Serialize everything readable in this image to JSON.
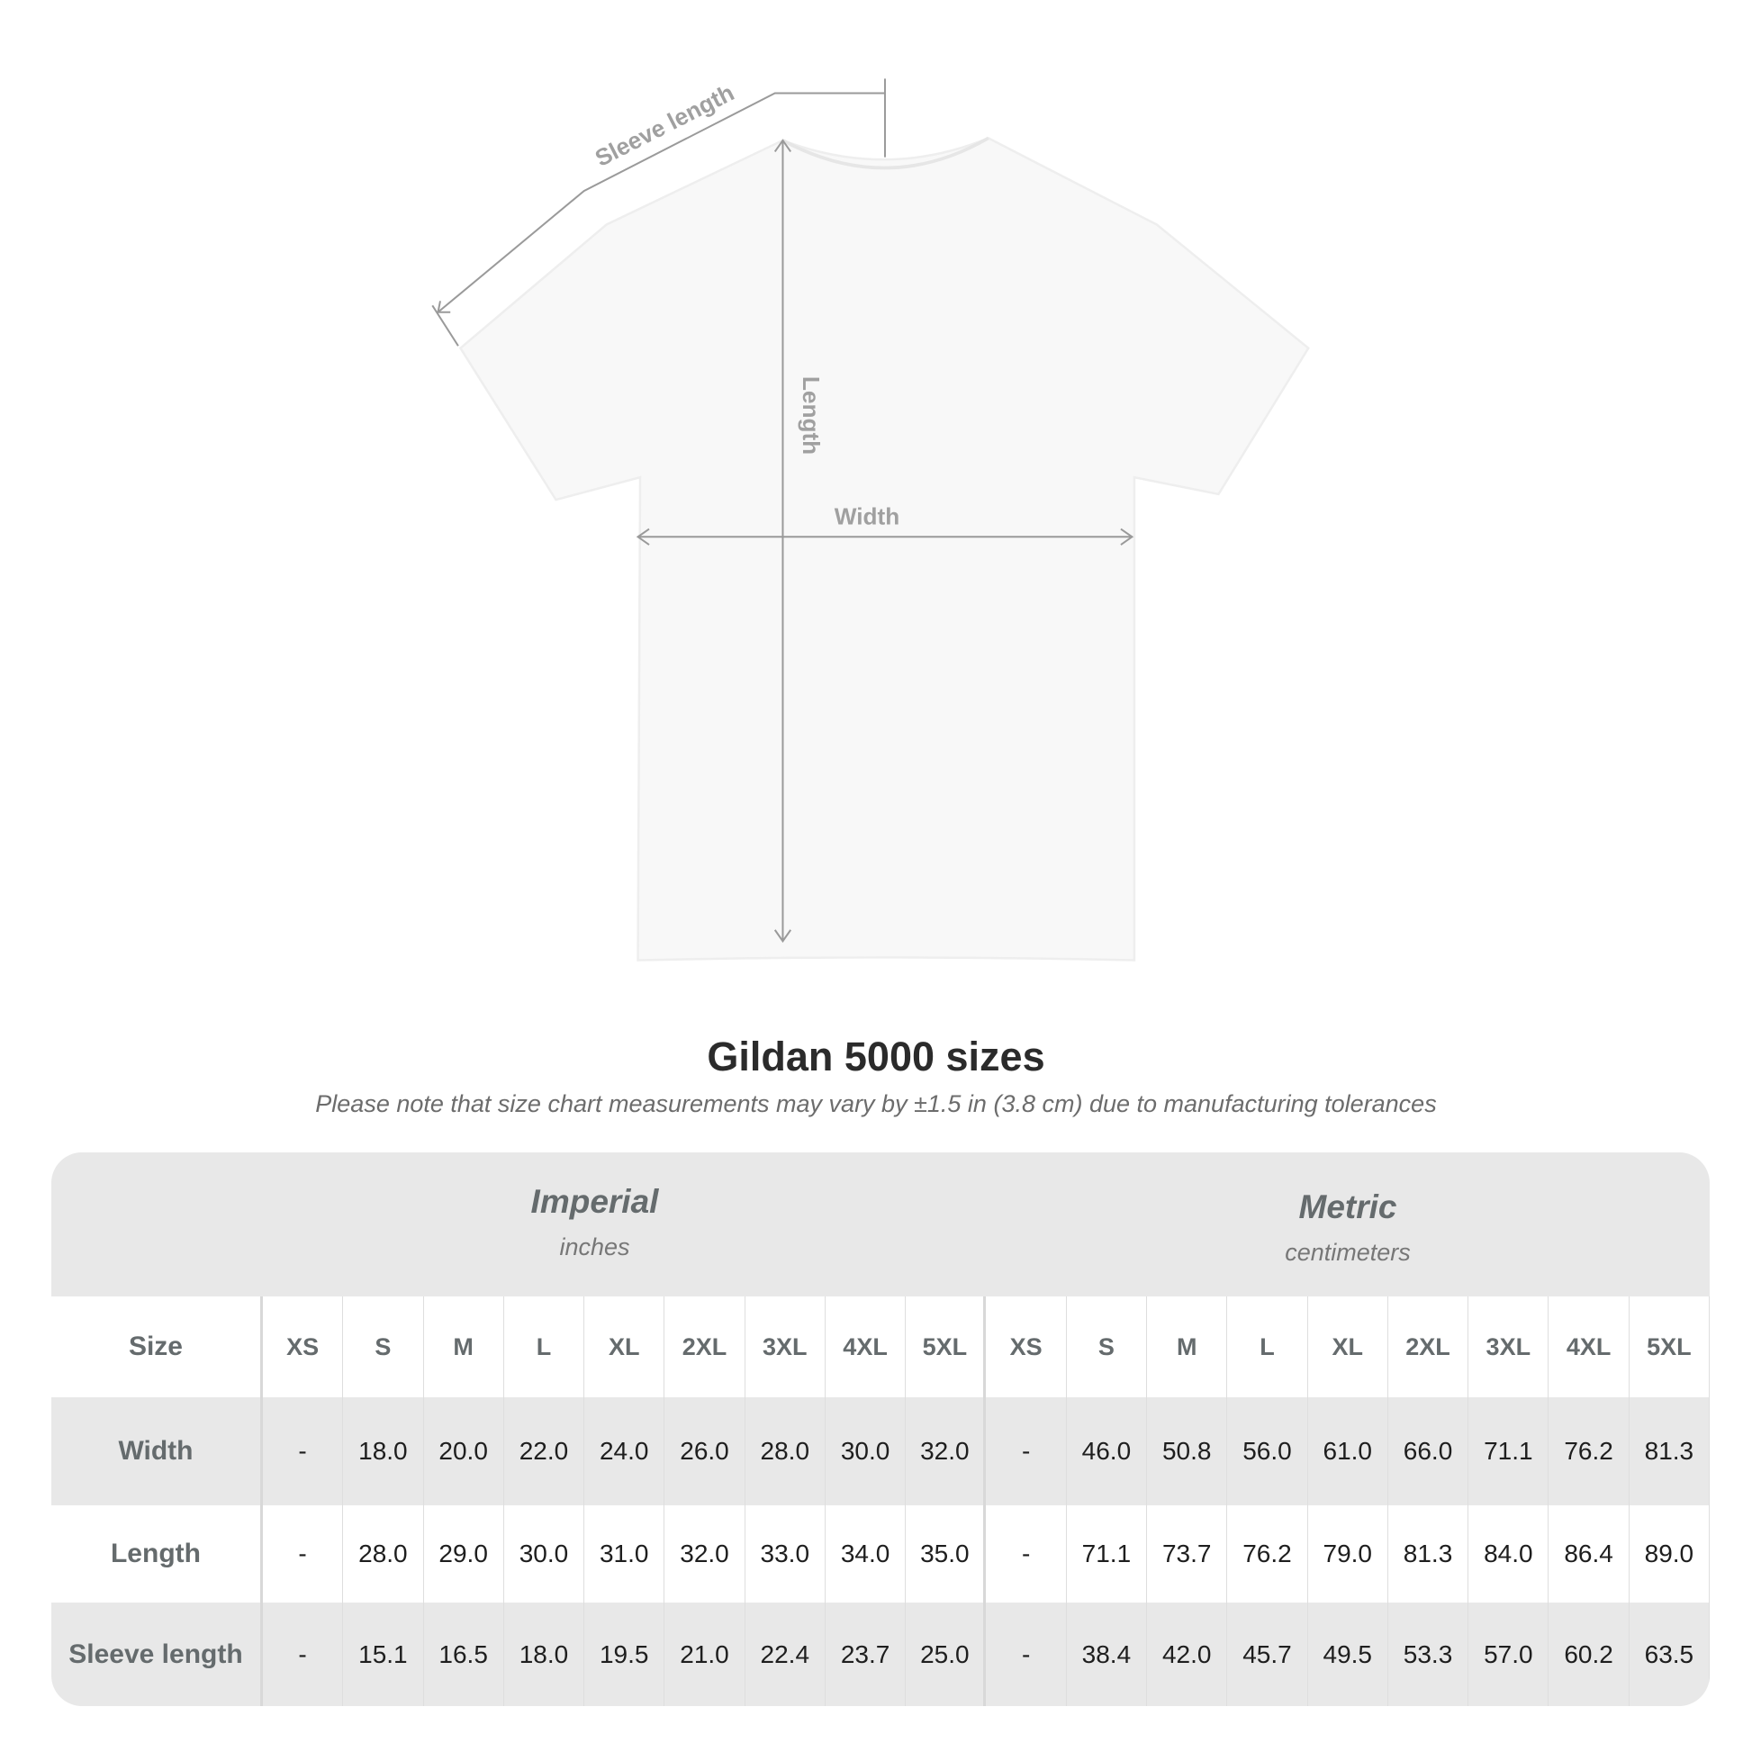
{
  "diagram": {
    "sleeve_label": "Sleeve length",
    "length_label": "Length",
    "width_label": "Width"
  },
  "title": "Gildan 5000 sizes",
  "note": "Please note that size chart measurements may vary by ±1.5 in (3.8 cm) due to manufacturing tolerances",
  "imperial": {
    "heading": "Imperial",
    "unit": "inches"
  },
  "metric": {
    "heading": "Metric",
    "unit": "centimeters"
  },
  "table": {
    "size_label": "Size",
    "sizes": [
      "XS",
      "S",
      "M",
      "L",
      "XL",
      "2XL",
      "3XL",
      "4XL",
      "5XL"
    ],
    "rows": [
      {
        "label": "Width",
        "imperial": [
          "-",
          "18.0",
          "20.0",
          "22.0",
          "24.0",
          "26.0",
          "28.0",
          "30.0",
          "32.0"
        ],
        "metric": [
          "-",
          "46.0",
          "50.8",
          "56.0",
          "61.0",
          "66.0",
          "71.1",
          "76.2",
          "81.3"
        ]
      },
      {
        "label": "Length",
        "imperial": [
          "-",
          "28.0",
          "29.0",
          "30.0",
          "31.0",
          "32.0",
          "33.0",
          "34.0",
          "35.0"
        ],
        "metric": [
          "-",
          "71.1",
          "73.7",
          "76.2",
          "79.0",
          "81.3",
          "84.0",
          "86.4",
          "89.0"
        ]
      },
      {
        "label": "Sleeve length",
        "imperial": [
          "-",
          "15.1",
          "16.5",
          "18.0",
          "19.5",
          "21.0",
          "22.4",
          "23.7",
          "25.0"
        ],
        "metric": [
          "-",
          "38.4",
          "42.0",
          "45.7",
          "49.5",
          "53.3",
          "57.0",
          "60.2",
          "63.5"
        ]
      }
    ]
  }
}
